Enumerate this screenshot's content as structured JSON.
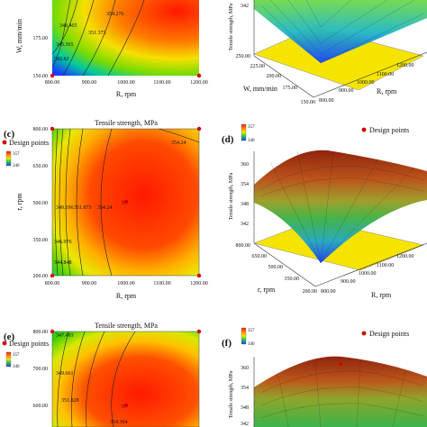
{
  "colors": {
    "high": "#ff1e00",
    "mid": "#f2e600",
    "low": "#1a3cff",
    "design_point": "#d40000",
    "floor": "#f5e400"
  },
  "chart_data": [
    {
      "panel": "(a)",
      "type": "heatmap",
      "subtype": "contour",
      "title": "",
      "xlabel": "R, rpm",
      "ylabel": "W, mm/min",
      "x_ticks": [
        "800.00",
        "900.00",
        "1000.00",
        "1100.00",
        "1200.00"
      ],
      "y_ticks": [
        "150.00",
        "175.00"
      ],
      "contour_labels": [
        "342.82",
        "345.365",
        "348.465",
        "351.373",
        "354.276"
      ],
      "design_points": [
        [
          800,
          150
        ],
        [
          1200,
          150
        ]
      ]
    },
    {
      "panel": "(b)",
      "type": "area",
      "subtype": "3d-surface",
      "zlabel": "Tensile strength, MPa",
      "z_ticks": [
        "342"
      ],
      "x_axis_label": "W, mm/min",
      "x_ticks": [
        "250.00",
        "225.00",
        "200.00",
        "175.00",
        "150.00"
      ],
      "y_axis_label": "R, rpm",
      "y_ticks": [
        "1200.00",
        "1100.00",
        "1000.00",
        "900.00",
        "800.00"
      ]
    },
    {
      "panel": "(c)",
      "type": "heatmap",
      "subtype": "contour",
      "title": "Tensile strength, MPa",
      "legend": {
        "title": "Design points",
        "color_max": "357",
        "color_min": "340"
      },
      "xlabel": "R, rpm",
      "ylabel": "r, rpm",
      "x_ticks": [
        "800.00",
        "900.00",
        "1000.00",
        "1100.00",
        "1200.00"
      ],
      "y_ticks": [
        "200.00",
        "350.00",
        "500.00",
        "650.00",
        "800.00"
      ],
      "contour_labels": [
        "344.848",
        "346.976",
        "349.196",
        "351.873",
        "354.24",
        "354.24"
      ],
      "center_point": "5",
      "design_points": [
        [
          800,
          800
        ],
        [
          1200,
          800
        ],
        [
          800,
          200
        ],
        [
          1200,
          200
        ],
        [
          1000,
          500
        ]
      ]
    },
    {
      "panel": "(d)",
      "type": "area",
      "subtype": "3d-surface",
      "legend": {
        "title": "Design points",
        "color_max": "357",
        "color_min": "340"
      },
      "zlabel": "Tensile strength, MPa",
      "z_ticks": [
        "342",
        "348",
        "354",
        "360"
      ],
      "x_axis_label": "r, rpm",
      "x_ticks": [
        "800.00",
        "650.00",
        "500.00",
        "350.00",
        "200.00"
      ],
      "y_axis_label": "R, rpm",
      "y_ticks": [
        "1200.00",
        "1100.00",
        "1000.00",
        "900.00",
        "800.00"
      ]
    },
    {
      "panel": "(e)",
      "type": "heatmap",
      "subtype": "contour",
      "title": "Tensile strength, MPa",
      "legend": {
        "title": "Design points",
        "color_max": "357",
        "color_min": "340"
      },
      "ylabel": "",
      "y_ticks": [
        "500.00",
        "600.00",
        "700.00",
        "800.00"
      ],
      "contour_labels": [
        "347.493",
        "349.661",
        "351.828",
        "354.364"
      ],
      "center_point": "5"
    },
    {
      "panel": "(f)",
      "type": "area",
      "subtype": "3d-surface",
      "legend": {
        "title": "Design points",
        "color_max": "357",
        "color_min": "340"
      },
      "zlabel": "Tensile strength, MPa",
      "z_ticks": [
        "342",
        "348",
        "354",
        "360"
      ]
    }
  ]
}
